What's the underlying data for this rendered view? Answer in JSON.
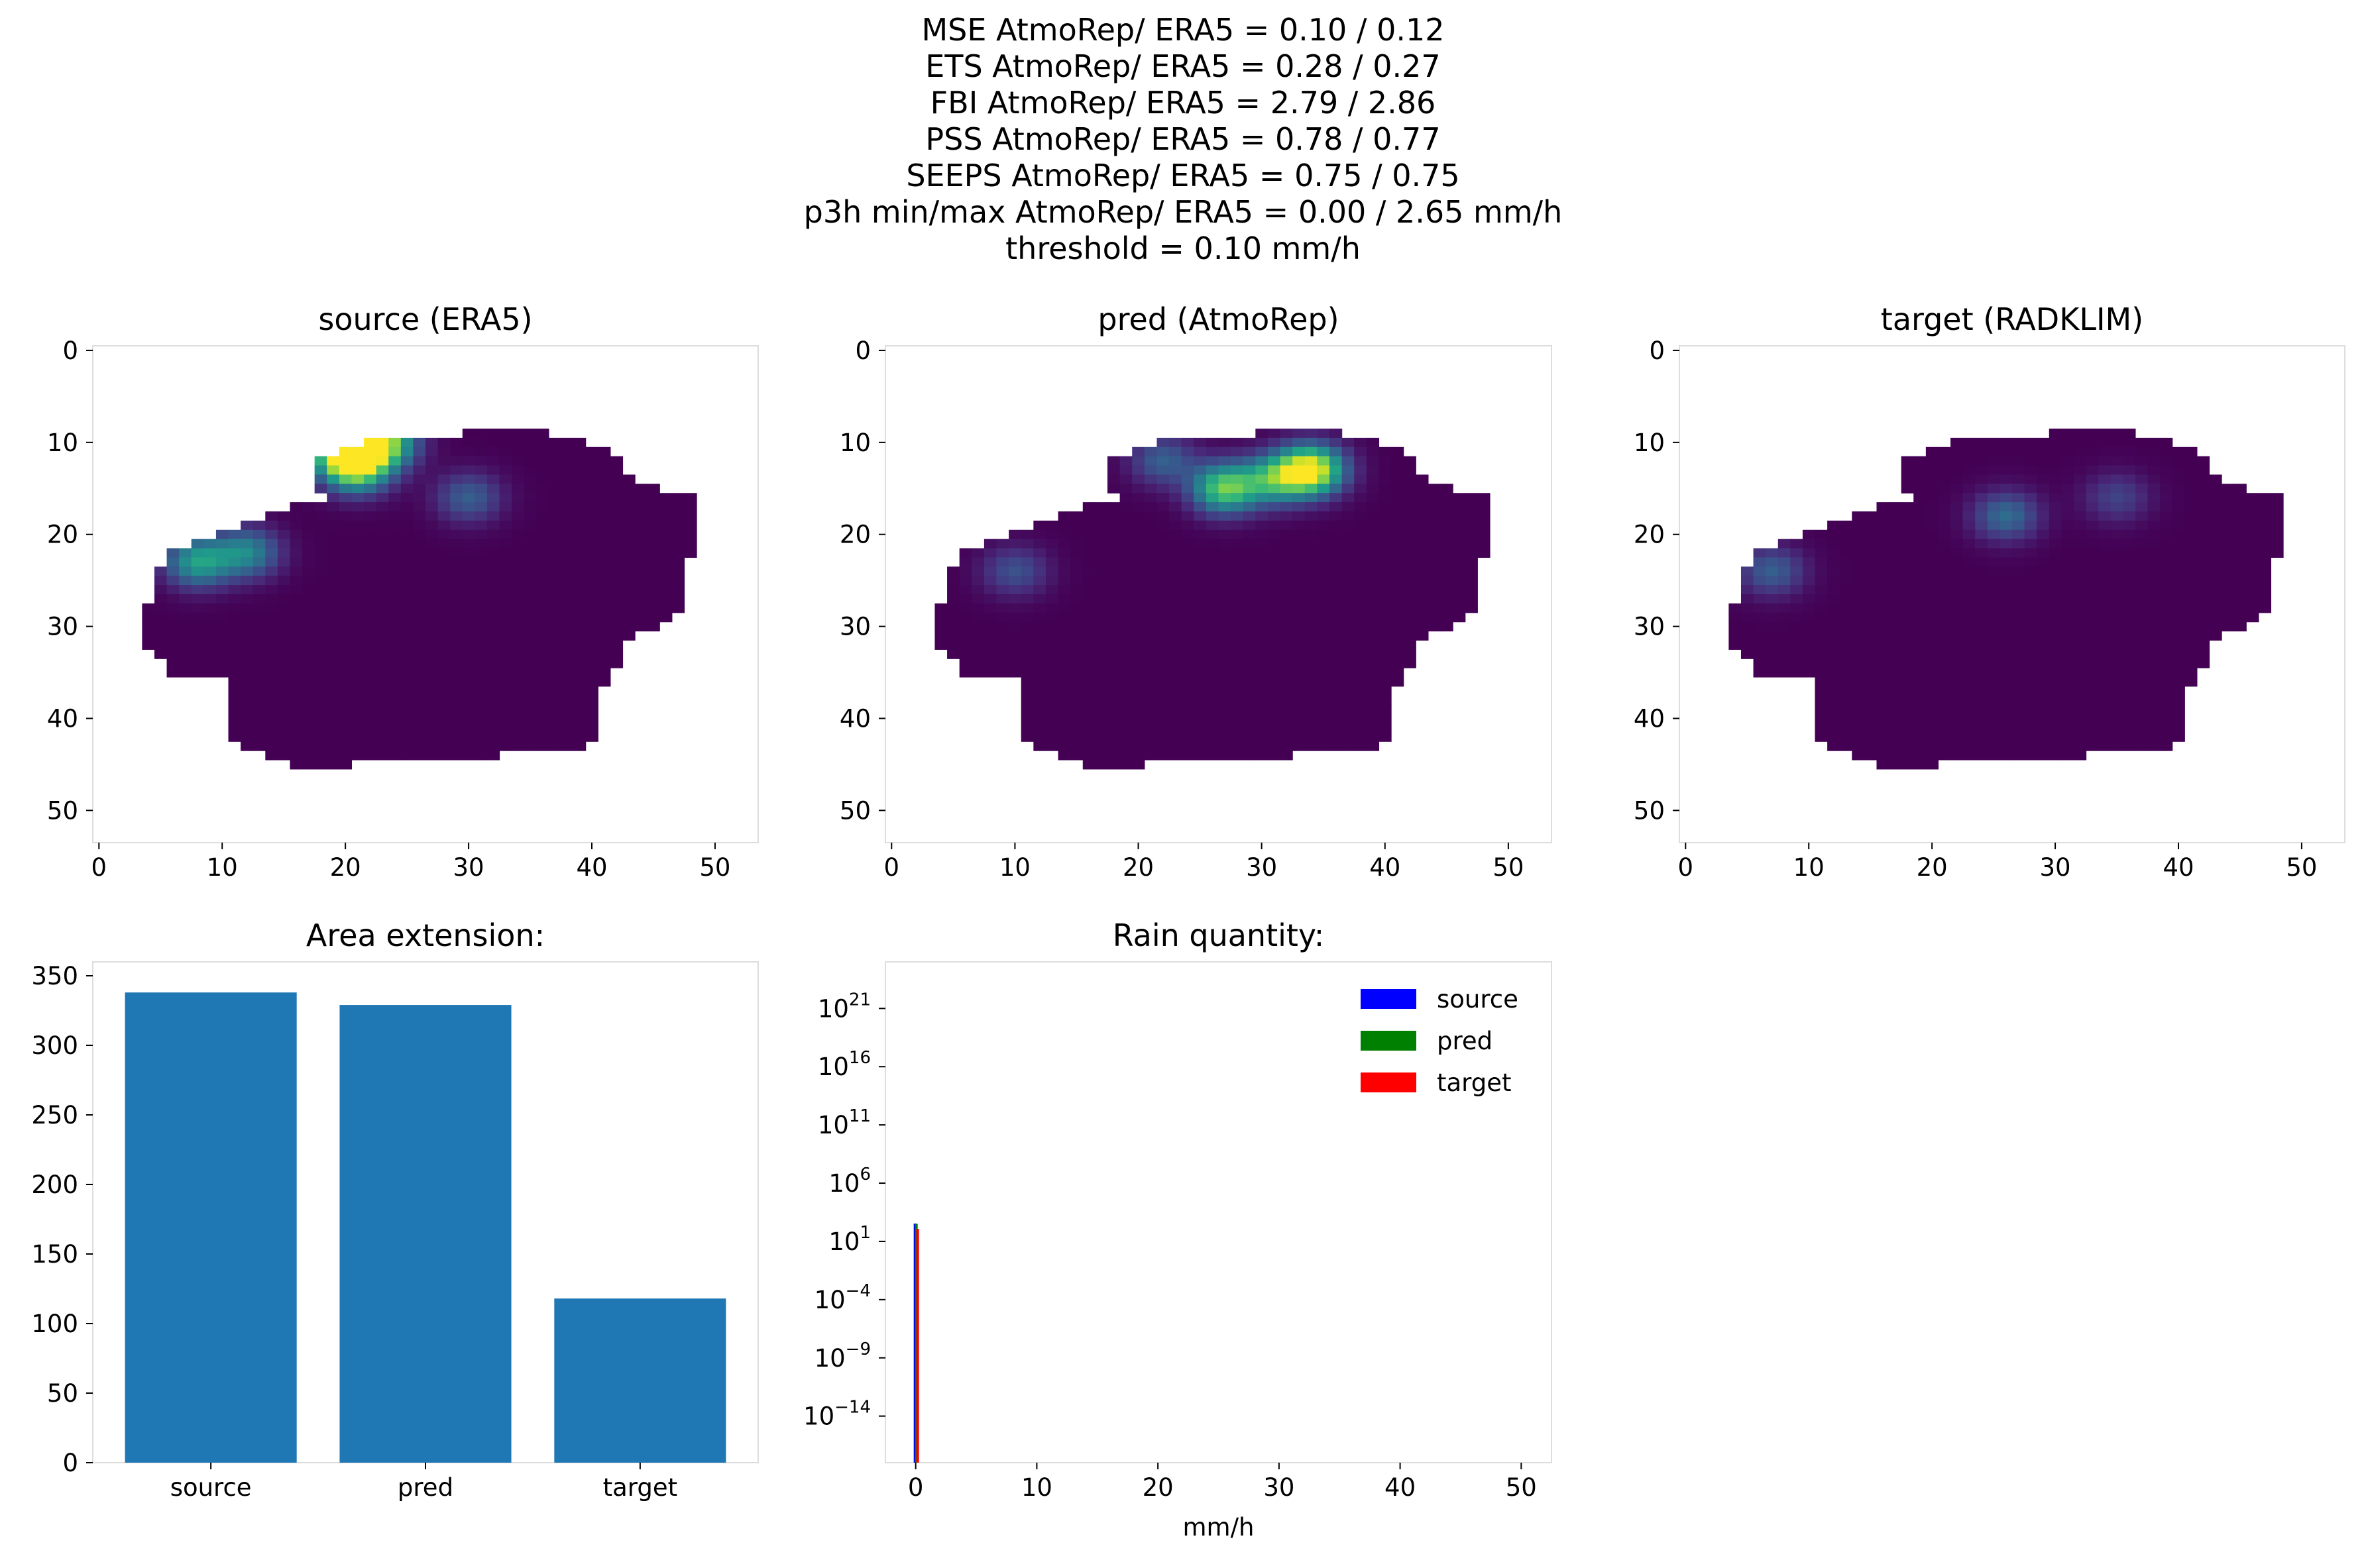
{
  "suptitle": [
    "MSE AtmoRep/ ERA5 = 0.10 / 0.12",
    "ETS AtmoRep/ ERA5 = 0.28 / 0.27",
    "FBI AtmoRep/ ERA5 = 2.79 / 2.86",
    "PSS AtmoRep/ ERA5 = 0.78 / 0.77",
    "SEEPS AtmoRep/ ERA5 = 0.75 / 0.75",
    "p3h min/max AtmoRep/ ERA5 = 0.00 / 2.65 mm/h",
    "threshold = 0.10 mm/h"
  ],
  "chart_data": [
    {
      "type": "heatmap",
      "title": "source (ERA5)",
      "colormap": "viridis",
      "xticks": [
        0,
        10,
        20,
        30,
        40,
        50
      ],
      "yticks": [
        0,
        10,
        20,
        30,
        40,
        50
      ],
      "xlim": [
        -0.5,
        53.5
      ],
      "ylim": [
        53.5,
        -0.5
      ],
      "hotspots": [
        {
          "x": 20,
          "y": 11,
          "value": 1.0
        },
        {
          "x": 23,
          "y": 10,
          "value": 0.8
        },
        {
          "x": 21,
          "y": 13,
          "value": 0.6
        },
        {
          "x": 8,
          "y": 23,
          "value": 0.55
        },
        {
          "x": 12,
          "y": 22,
          "value": 0.45
        },
        {
          "x": 30,
          "y": 16,
          "value": 0.3
        }
      ]
    },
    {
      "type": "heatmap",
      "title": "pred (AtmoRep)",
      "colormap": "viridis",
      "xticks": [
        0,
        10,
        20,
        30,
        40,
        50
      ],
      "yticks": [
        0,
        10,
        20,
        30,
        40,
        50
      ],
      "xlim": [
        -0.5,
        53.5
      ],
      "ylim": [
        53.5,
        -0.5
      ],
      "hotspots": [
        {
          "x": 34,
          "y": 13,
          "value": 1.0
        },
        {
          "x": 27,
          "y": 15,
          "value": 0.75
        },
        {
          "x": 31,
          "y": 14,
          "value": 0.55
        },
        {
          "x": 22,
          "y": 12,
          "value": 0.3
        },
        {
          "x": 10,
          "y": 24,
          "value": 0.25
        }
      ]
    },
    {
      "type": "heatmap",
      "title": "target (RADKLIM)",
      "colormap": "viridis",
      "xticks": [
        0,
        10,
        20,
        30,
        40,
        50
      ],
      "yticks": [
        0,
        10,
        20,
        30,
        40,
        50
      ],
      "xlim": [
        -0.5,
        53.5
      ],
      "ylim": [
        53.5,
        -0.5
      ],
      "hotspots": [
        {
          "x": 26,
          "y": 18,
          "value": 0.35
        },
        {
          "x": 7,
          "y": 24,
          "value": 0.3
        },
        {
          "x": 35,
          "y": 16,
          "value": 0.2
        }
      ]
    },
    {
      "type": "bar",
      "title": "Area extension:",
      "categories": [
        "source",
        "pred",
        "target"
      ],
      "values": [
        338,
        329,
        118
      ],
      "ylim": [
        0,
        360
      ],
      "yticks": [
        0,
        50,
        100,
        150,
        200,
        250,
        300,
        350
      ],
      "color": "#1f77b4"
    },
    {
      "type": "bar",
      "title": "Rain quantity:",
      "xlabel": "mm/h",
      "yscale": "log",
      "xticks": [
        0,
        10,
        20,
        30,
        40,
        50
      ],
      "xlim": [
        -2.5,
        52.5
      ],
      "ylog_range": [
        -18,
        25
      ],
      "yticks": [
        {
          "base": "10",
          "exp": "21",
          "log": 21
        },
        {
          "base": "10",
          "exp": "16",
          "log": 16
        },
        {
          "base": "10",
          "exp": "11",
          "log": 11
        },
        {
          "base": "10",
          "exp": "6",
          "log": 6
        },
        {
          "base": "10",
          "exp": "1",
          "log": 1
        },
        {
          "base": "10",
          "exp": "−4",
          "log": -4
        },
        {
          "base": "10",
          "exp": "−9",
          "log": -9
        },
        {
          "base": "10",
          "exp": "−14",
          "log": -14
        }
      ],
      "legend_position": "upper-right",
      "series": [
        {
          "name": "source",
          "color": "#0000ff",
          "bins": [
            {
              "x": 0.0,
              "value": 338
            }
          ]
        },
        {
          "name": "pred",
          "color": "#008000",
          "bins": [
            {
              "x": 0.0,
              "value": 329
            }
          ]
        },
        {
          "name": "target",
          "color": "#ff0000",
          "bins": [
            {
              "x": 0.0,
              "value": 118
            }
          ]
        }
      ]
    }
  ]
}
